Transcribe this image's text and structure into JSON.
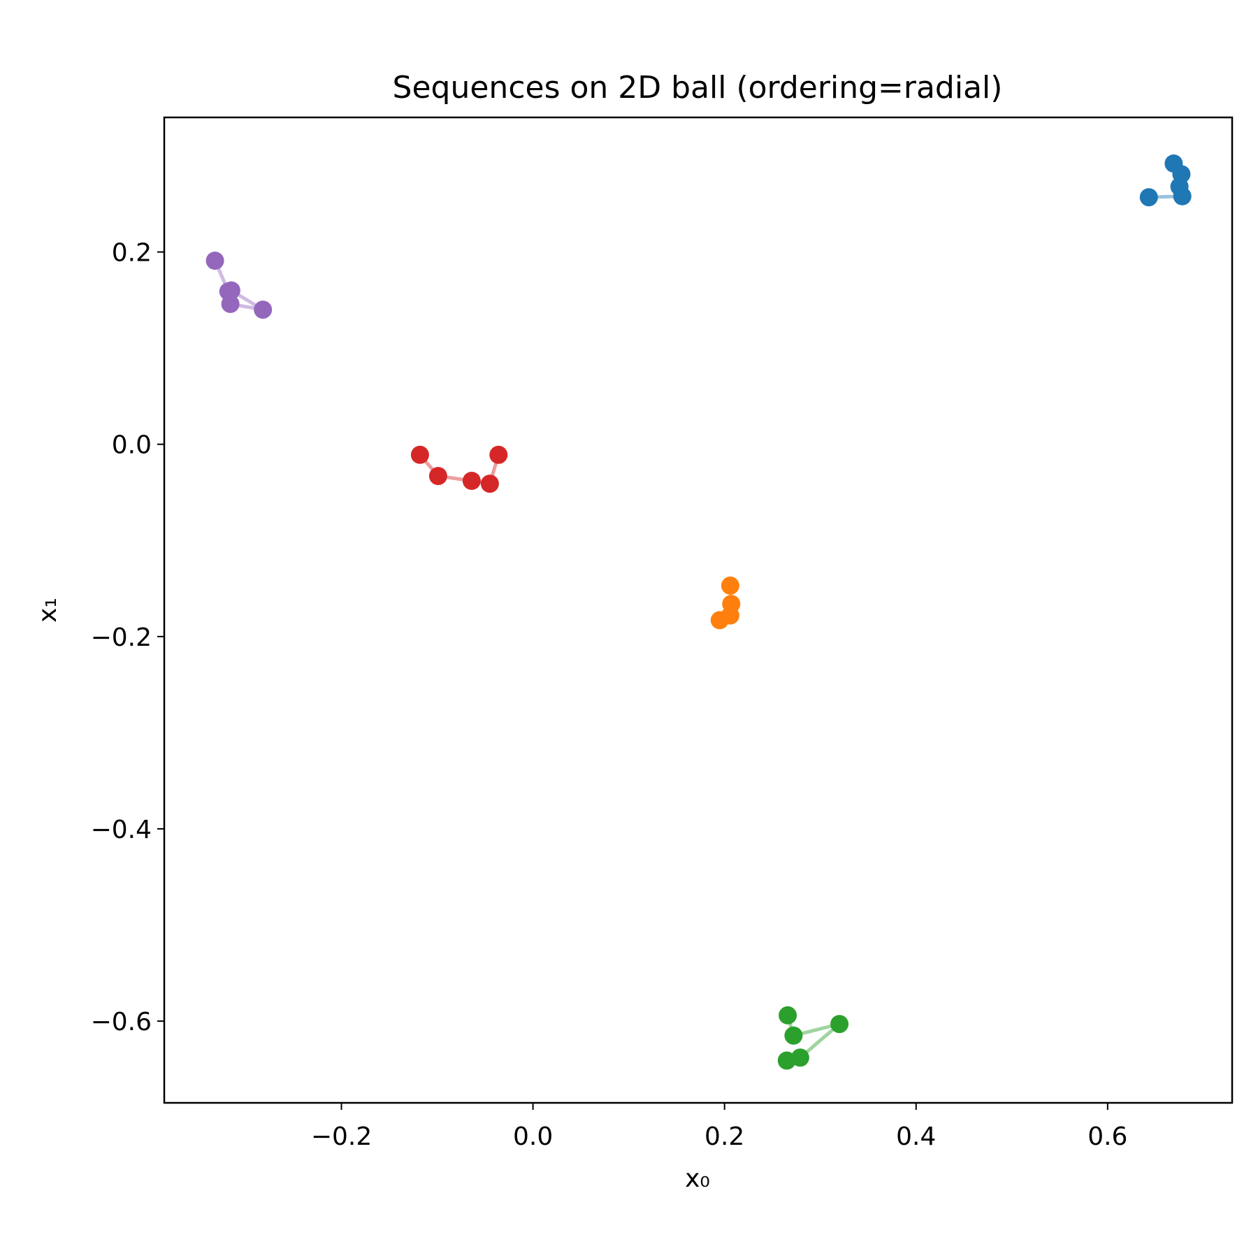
{
  "chart_data": {
    "type": "scatter",
    "title": "Sequences on 2D ball (ordering=radial)",
    "xlabel": "x₀",
    "ylabel": "x₁",
    "xlim": [
      -0.385,
      0.73
    ],
    "ylim": [
      -0.685,
      0.34
    ],
    "xticks": [
      -0.2,
      0.0,
      0.2,
      0.4,
      0.6
    ],
    "xtick_labels": [
      "−0.2",
      "0.0",
      "0.2",
      "0.4",
      "0.6"
    ],
    "yticks": [
      0.2,
      0.0,
      -0.2,
      -0.4,
      -0.6
    ],
    "ytick_labels": [
      "0.2",
      "0.0",
      "−0.2",
      "−0.4",
      "−0.6"
    ],
    "grid": false,
    "legend": false,
    "connected": true,
    "series": [
      {
        "color": "#1f77b4",
        "points": [
          [
            0.643,
            0.257
          ],
          [
            0.678,
            0.258
          ],
          [
            0.675,
            0.268
          ],
          [
            0.677,
            0.281
          ],
          [
            0.669,
            0.292
          ]
        ]
      },
      {
        "color": "#ff7f0e",
        "points": [
          [
            0.195,
            -0.183
          ],
          [
            0.206,
            -0.178
          ],
          [
            0.207,
            -0.166
          ],
          [
            0.206,
            -0.147
          ]
        ]
      },
      {
        "color": "#2ca02c",
        "points": [
          [
            0.265,
            -0.641
          ],
          [
            0.279,
            -0.638
          ],
          [
            0.32,
            -0.603
          ],
          [
            0.272,
            -0.615
          ],
          [
            0.266,
            -0.594
          ]
        ]
      },
      {
        "color": "#d62728",
        "points": [
          [
            -0.118,
            -0.011
          ],
          [
            -0.099,
            -0.033
          ],
          [
            -0.064,
            -0.038
          ],
          [
            -0.045,
            -0.041
          ],
          [
            -0.036,
            -0.011
          ]
        ]
      },
      {
        "color": "#9467bd",
        "points": [
          [
            -0.332,
            0.191
          ],
          [
            -0.318,
            0.159
          ],
          [
            -0.316,
            0.146
          ],
          [
            -0.282,
            0.14
          ],
          [
            -0.315,
            0.16
          ]
        ]
      }
    ]
  }
}
